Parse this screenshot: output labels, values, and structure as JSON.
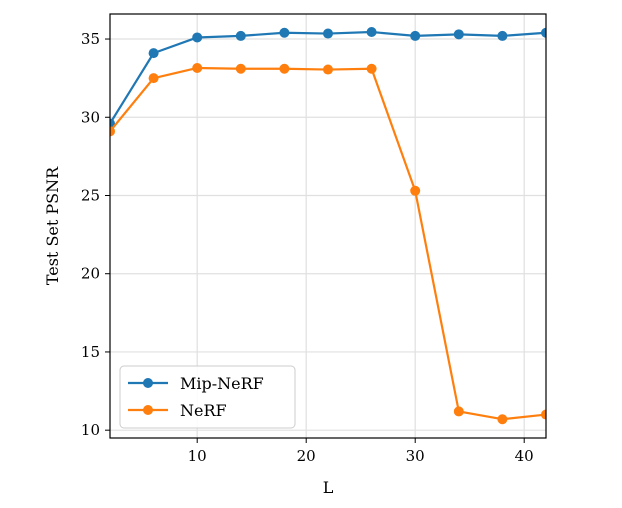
{
  "chart_data": {
    "type": "line",
    "xlabel": "L",
    "ylabel": "Test Set PSNR",
    "xlim": [
      2,
      42
    ],
    "ylim": [
      9.5,
      36.6
    ],
    "xticks": [
      10,
      20,
      30,
      40
    ],
    "yticks": [
      10,
      15,
      20,
      25,
      30,
      35
    ],
    "grid": true,
    "legend_position": "lower-left",
    "x": [
      2,
      6,
      10,
      14,
      18,
      22,
      26,
      30,
      34,
      38,
      42
    ],
    "series": [
      {
        "name": "Mip-NeRF",
        "color": "#1f77b4",
        "values": [
          29.6,
          34.1,
          35.1,
          35.2,
          35.4,
          35.35,
          35.45,
          35.2,
          35.3,
          35.2,
          35.4
        ]
      },
      {
        "name": "NeRF",
        "color": "#ff7f0e",
        "values": [
          29.1,
          32.5,
          33.15,
          33.1,
          33.1,
          33.05,
          33.1,
          25.3,
          11.2,
          10.7,
          11.0
        ]
      }
    ]
  }
}
